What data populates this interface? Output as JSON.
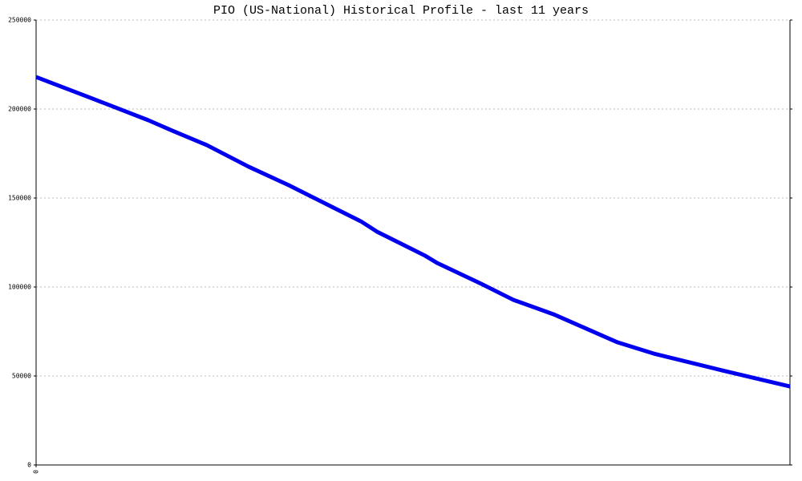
{
  "chart_data": {
    "type": "line",
    "title": "PIO (US-National) Historical Profile - last 11 years",
    "x": [
      0,
      65,
      140,
      170,
      213,
      265,
      315,
      365,
      405,
      425,
      485,
      500,
      555,
      595,
      645,
      725,
      770,
      855,
      940
    ],
    "series": [
      {
        "color": "#0000ee",
        "values": [
          218000,
          206800,
          193700,
          187800,
          179700,
          167600,
          157200,
          145900,
          136900,
          131100,
          117600,
          113500,
          101800,
          92800,
          84700,
          68900,
          62600,
          53200,
          44100
        ]
      }
    ],
    "xlim": [
      0,
      940
    ],
    "xticks": [
      0
    ],
    "ylim": [
      0,
      250000
    ],
    "yticks": [
      0,
      50000,
      100000,
      150000,
      200000,
      250000
    ],
    "grid": true
  }
}
